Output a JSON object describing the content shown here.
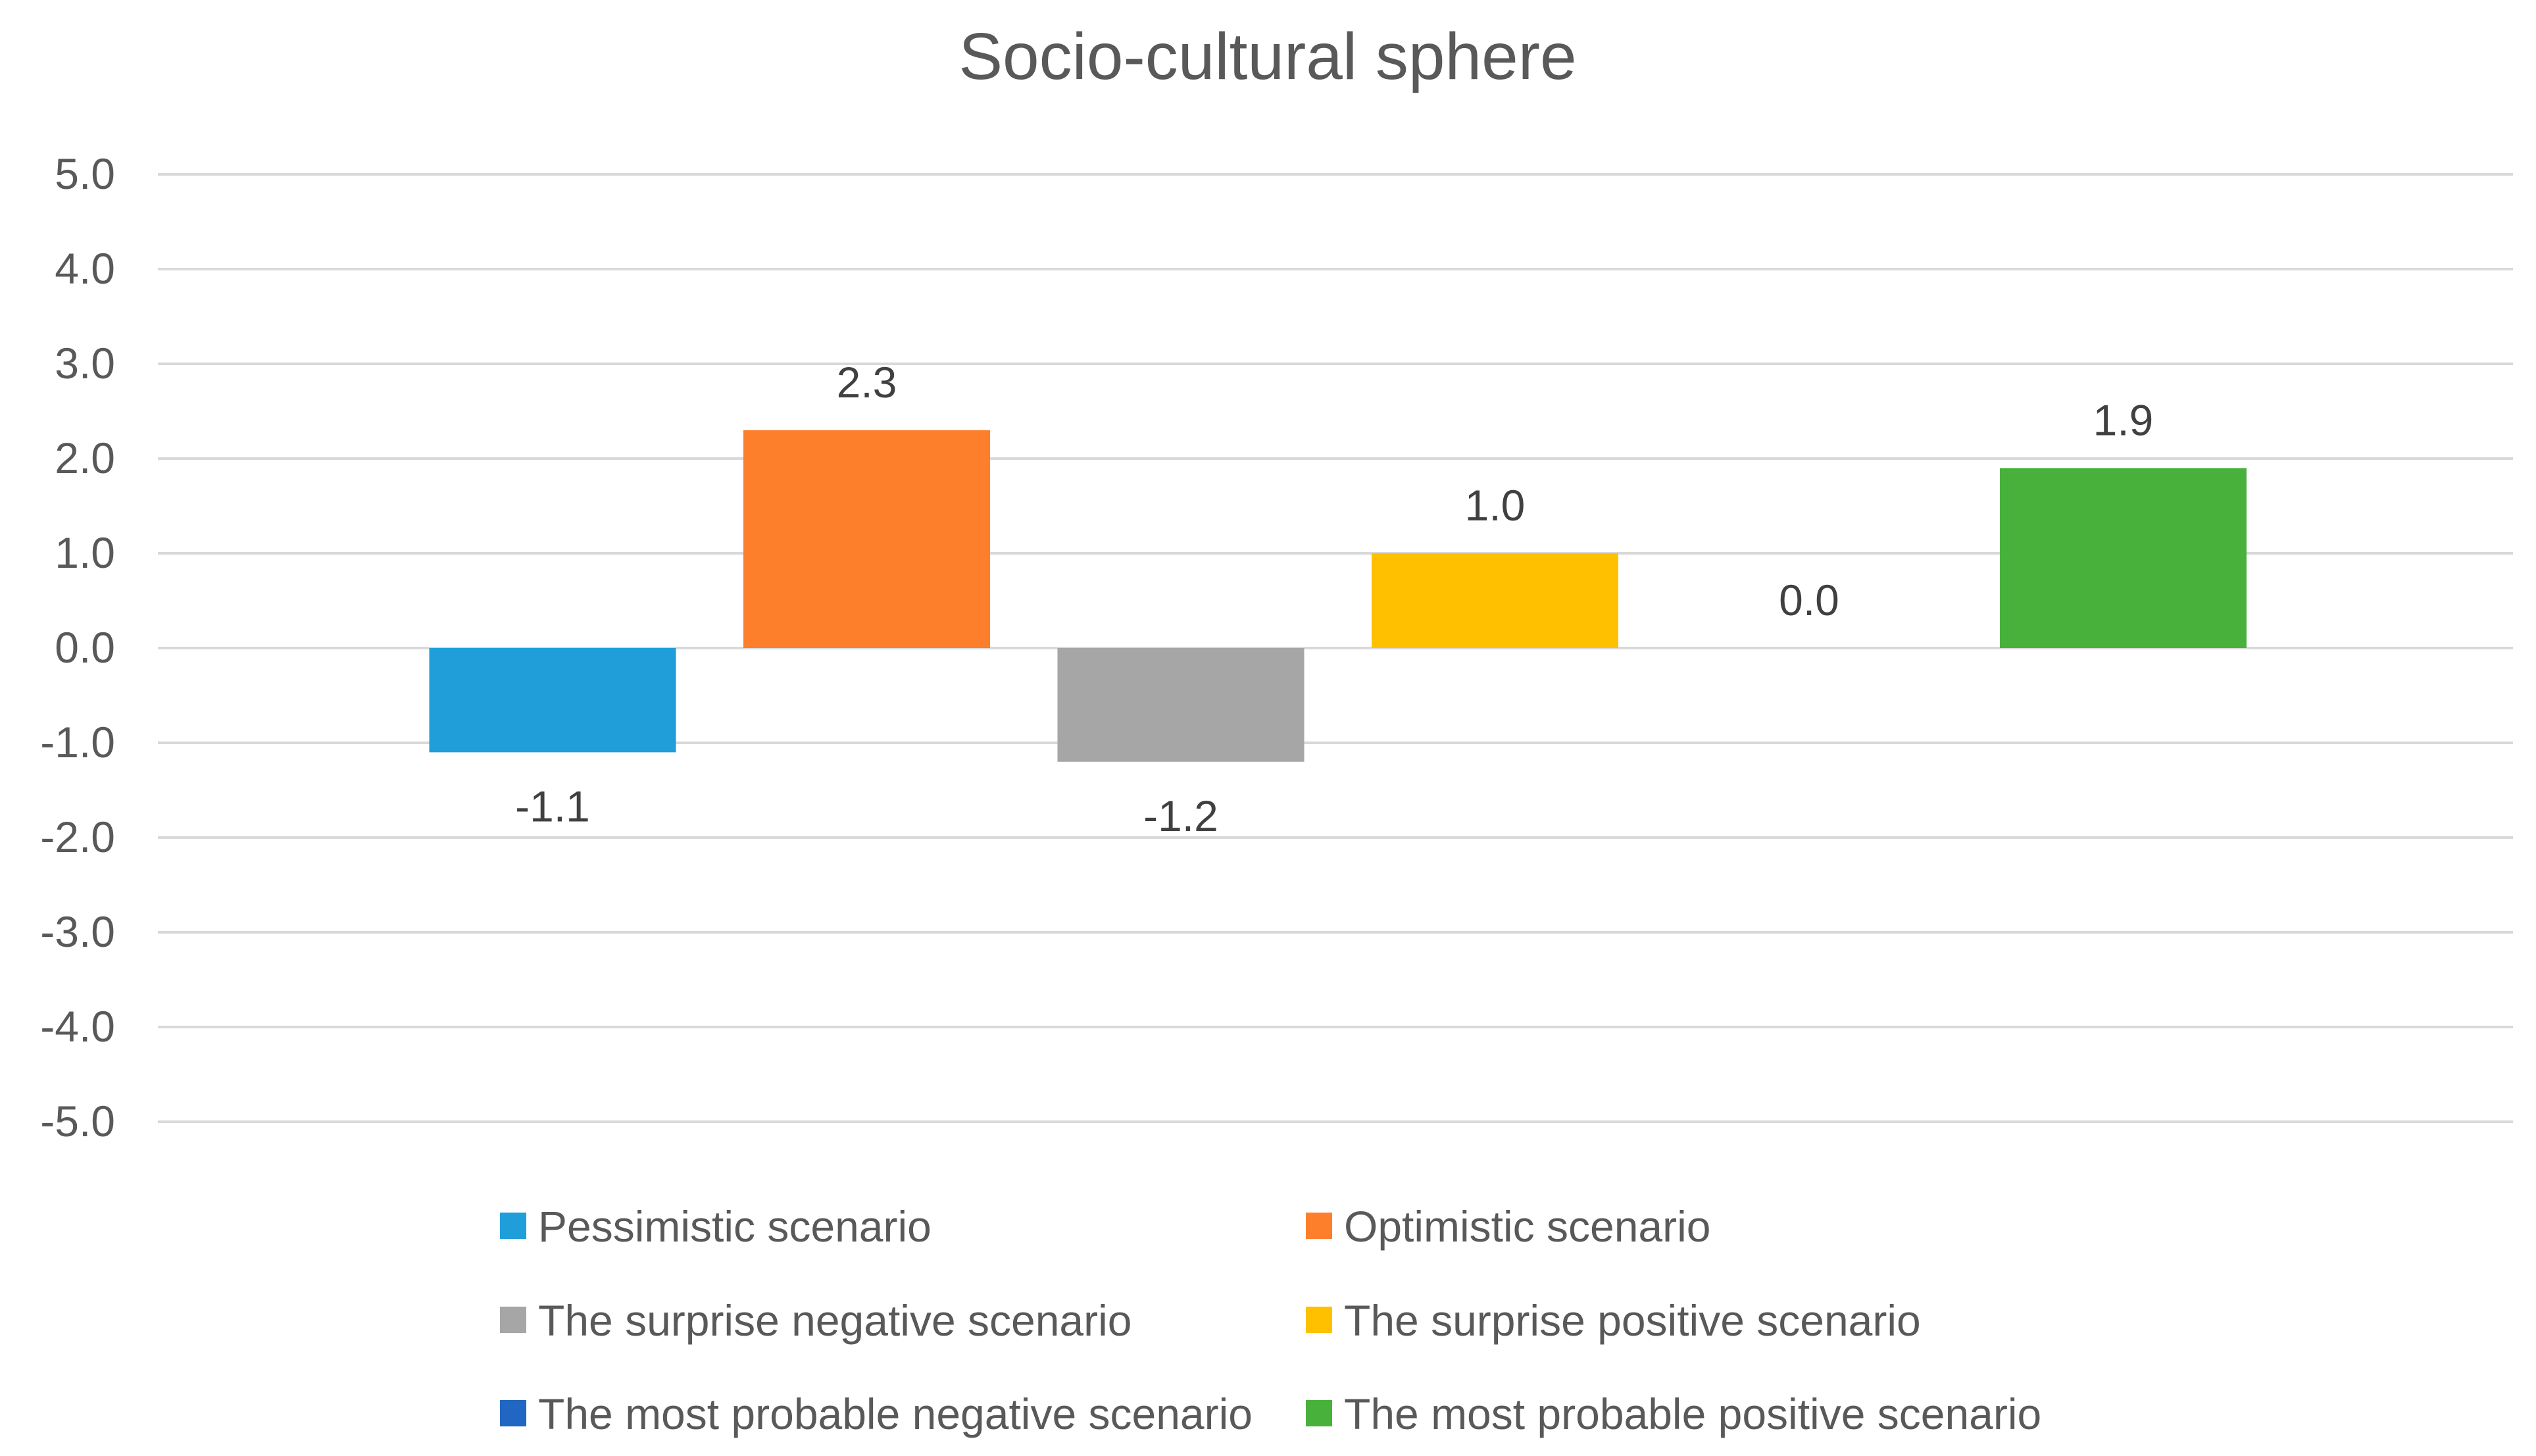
{
  "chart_data": {
    "type": "bar",
    "title": "Socio-cultural sphere",
    "xlabel": "",
    "ylabel": "",
    "ylim": [
      -5,
      5
    ],
    "y_ticks": [
      "5.0",
      "4.0",
      "3.0",
      "2.0",
      "1.0",
      "0.0",
      "-1.0",
      "-2.0",
      "-3.0",
      "-4.0",
      "-5.0"
    ],
    "grid": true,
    "legend_position": "bottom",
    "series": [
      {
        "name": "Pessimistic scenario",
        "value": -1.1,
        "label": "-1.1",
        "color": "#1f9ed9"
      },
      {
        "name": "Optimistic scenario",
        "value": 2.3,
        "label": "2.3",
        "color": "#fe7f2b"
      },
      {
        "name": "The surprise negative scenario",
        "value": -1.2,
        "label": "-1.2",
        "color": "#a6a6a6"
      },
      {
        "name": "The surprise positive scenario",
        "value": 1.0,
        "label": "1.0",
        "color": "#ffc000"
      },
      {
        "name": "The most probable negative scenario",
        "value": 0.0,
        "label": "0.0",
        "color": "#2066c2"
      },
      {
        "name": "The most probable positive scenario",
        "value": 1.9,
        "label": "1.9",
        "color": "#48b13c"
      }
    ]
  }
}
